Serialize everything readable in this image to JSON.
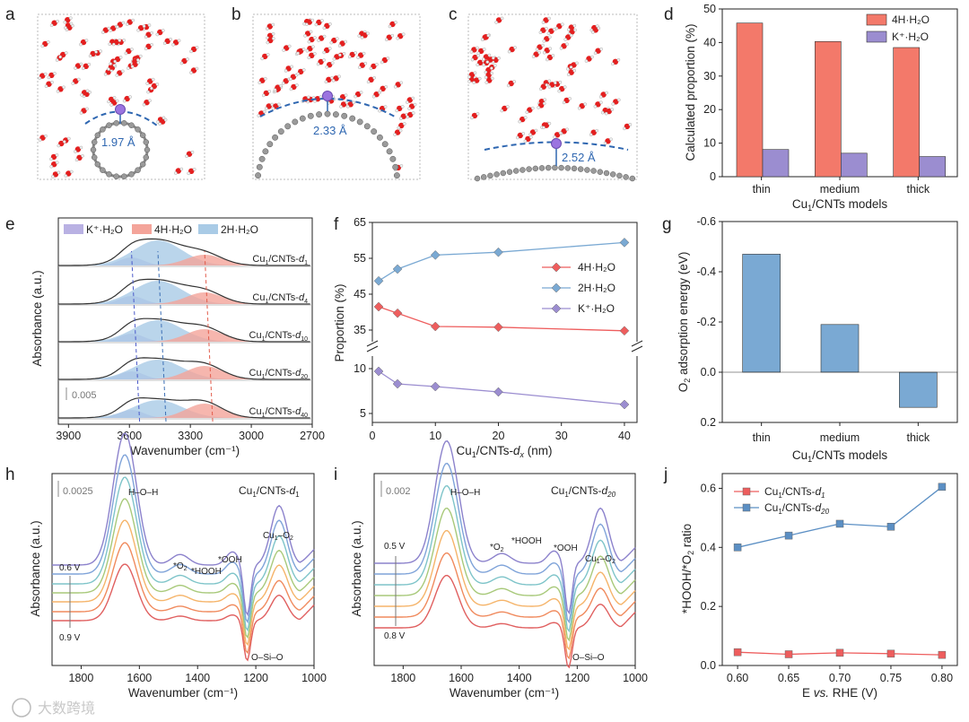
{
  "panels": {
    "a": {
      "label": "a",
      "distance": "1.97 Å"
    },
    "b": {
      "label": "b",
      "distance": "2.33 Å"
    },
    "c": {
      "label": "c",
      "distance": "2.52 Å"
    },
    "d": {
      "label": "d"
    },
    "e": {
      "label": "e"
    },
    "f": {
      "label": "f"
    },
    "g": {
      "label": "g"
    },
    "h": {
      "label": "h"
    },
    "i": {
      "label": "i"
    },
    "j": {
      "label": "j"
    }
  },
  "colors": {
    "salmon": "#f3796a",
    "purple": "#9b8dd0",
    "blue": "#7aa9d3",
    "blue_dark": "#5b8fc4",
    "red_point": "#ee5d5d"
  },
  "chart_data": [
    {
      "id": "d",
      "type": "bar",
      "categories": [
        "thin",
        "medium",
        "thick"
      ],
      "series": [
        {
          "name": "4H·H2O",
          "values": [
            45.8,
            40.3,
            38.5
          ]
        },
        {
          "name": "K⁺·H2O",
          "values": [
            8.1,
            7.0,
            6.0
          ]
        }
      ],
      "ylabel": "Calculated proportion (%)",
      "xlabel": "Cu1/CNTs models",
      "ylim": [
        0,
        50
      ],
      "yticks": [
        "0",
        "10",
        "20",
        "30",
        "40",
        "50"
      ],
      "legend": [
        "4H·H₂O",
        "K⁺·H₂O"
      ]
    },
    {
      "id": "e",
      "type": "area",
      "title": "",
      "xlabel": "Wavenumber (cm⁻¹)",
      "ylabel": "Absorbance (a.u.)",
      "xlim": [
        3950,
        2700
      ],
      "xticks": [
        "3900",
        "3600",
        "3300",
        "3000",
        "2700"
      ],
      "legend": [
        "K⁺·H₂O",
        "4H·H₂O",
        "2H·H₂O"
      ],
      "traces": [
        {
          "name": "Cu1/CNTs-d1",
          "sub": "1"
        },
        {
          "name": "Cu1/CNTs-d4",
          "sub": "4"
        },
        {
          "name": "Cu1/CNTs-d10",
          "sub": "10"
        },
        {
          "name": "Cu1/CNTs-d20",
          "sub": "20"
        },
        {
          "name": "Cu1/CNTs-d40",
          "sub": "40"
        }
      ],
      "scalebar": "0.005"
    },
    {
      "id": "f",
      "type": "line",
      "x": [
        1,
        4,
        10,
        20,
        40
      ],
      "series": [
        {
          "name": "4H·H2O",
          "values": [
            41.5,
            39.7,
            36.0,
            35.8,
            34.8
          ]
        },
        {
          "name": "2H·H2O",
          "values": [
            48.7,
            52.0,
            55.9,
            56.7,
            59.4
          ]
        },
        {
          "name": "K⁺·H2O",
          "values": [
            9.7,
            8.3,
            8.0,
            7.4,
            6.0
          ]
        }
      ],
      "xlabel": "Cu1/CNTs-dx (nm)",
      "ylabel": "Proportion (%)",
      "xlim": [
        0,
        42
      ],
      "xticks": [
        "0",
        "10",
        "20",
        "30",
        "40"
      ],
      "yticks_upper": [
        "35",
        "45",
        "55",
        "65"
      ],
      "yticks_lower": [
        "5",
        "10"
      ],
      "legend": [
        "4H·H₂O",
        "2H·H₂O",
        "K⁺·H₂O"
      ]
    },
    {
      "id": "g",
      "type": "bar",
      "categories": [
        "thin",
        "medium",
        "thick"
      ],
      "values": [
        -0.47,
        -0.19,
        0.14
      ],
      "ylabel": "O2 adsorption energy (eV)",
      "xlabel": "Cu1/CNTs models",
      "ylim": [
        0.2,
        -0.6
      ],
      "yticks": [
        "-0.6",
        "-0.4",
        "-0.2",
        "0.0",
        "0.2"
      ]
    },
    {
      "id": "h",
      "type": "line",
      "title": "Cu1/CNTs-d1",
      "xlabel": "Wavenumber (cm⁻¹)",
      "ylabel": "Absorbance (a.u.)",
      "xlim": [
        1900,
        1000
      ],
      "xticks": [
        "1800",
        "1600",
        "1400",
        "1200",
        "1000"
      ],
      "scalebar": "0.0025",
      "voltage_top": "0.6 V",
      "voltage_bottom": "0.9 V",
      "annotations": [
        "H–O–H",
        "*O2",
        "*HOOH",
        "*OOH",
        "Cu1–O2",
        "O–Si–O"
      ]
    },
    {
      "id": "i",
      "type": "line",
      "title": "Cu1/CNTs-d20",
      "xlabel": "Wavenumber (cm⁻¹)",
      "ylabel": "Absorbance (a.u.)",
      "xlim": [
        1900,
        1000
      ],
      "xticks": [
        "1800",
        "1600",
        "1400",
        "1200",
        "1000"
      ],
      "scalebar": "0.002",
      "voltage_top": "0.5 V",
      "voltage_bottom": "0.8 V",
      "annotations": [
        "H–O–H",
        "*O2",
        "*HOOH",
        "*OOH",
        "Cu1–O2",
        "O–Si–O"
      ]
    },
    {
      "id": "j",
      "type": "line",
      "x": [
        0.6,
        0.65,
        0.7,
        0.75,
        0.8
      ],
      "series": [
        {
          "name": "Cu1/CNTs-d1",
          "values": [
            0.045,
            0.038,
            0.043,
            0.04,
            0.036
          ]
        },
        {
          "name": "Cu1/CNTs-d20",
          "values": [
            0.4,
            0.44,
            0.48,
            0.47,
            0.605
          ]
        }
      ],
      "xlabel": "E vs. RHE (V)",
      "ylabel": "*HOOH/*O2 ratio",
      "xlim": [
        0.585,
        0.815
      ],
      "ylim": [
        0,
        0.65
      ],
      "xticks": [
        "0.60",
        "0.65",
        "0.70",
        "0.75",
        "0.80"
      ],
      "yticks": [
        "0.0",
        "0.2",
        "0.4",
        "0.6"
      ]
    }
  ],
  "watermark": "大数跨境"
}
